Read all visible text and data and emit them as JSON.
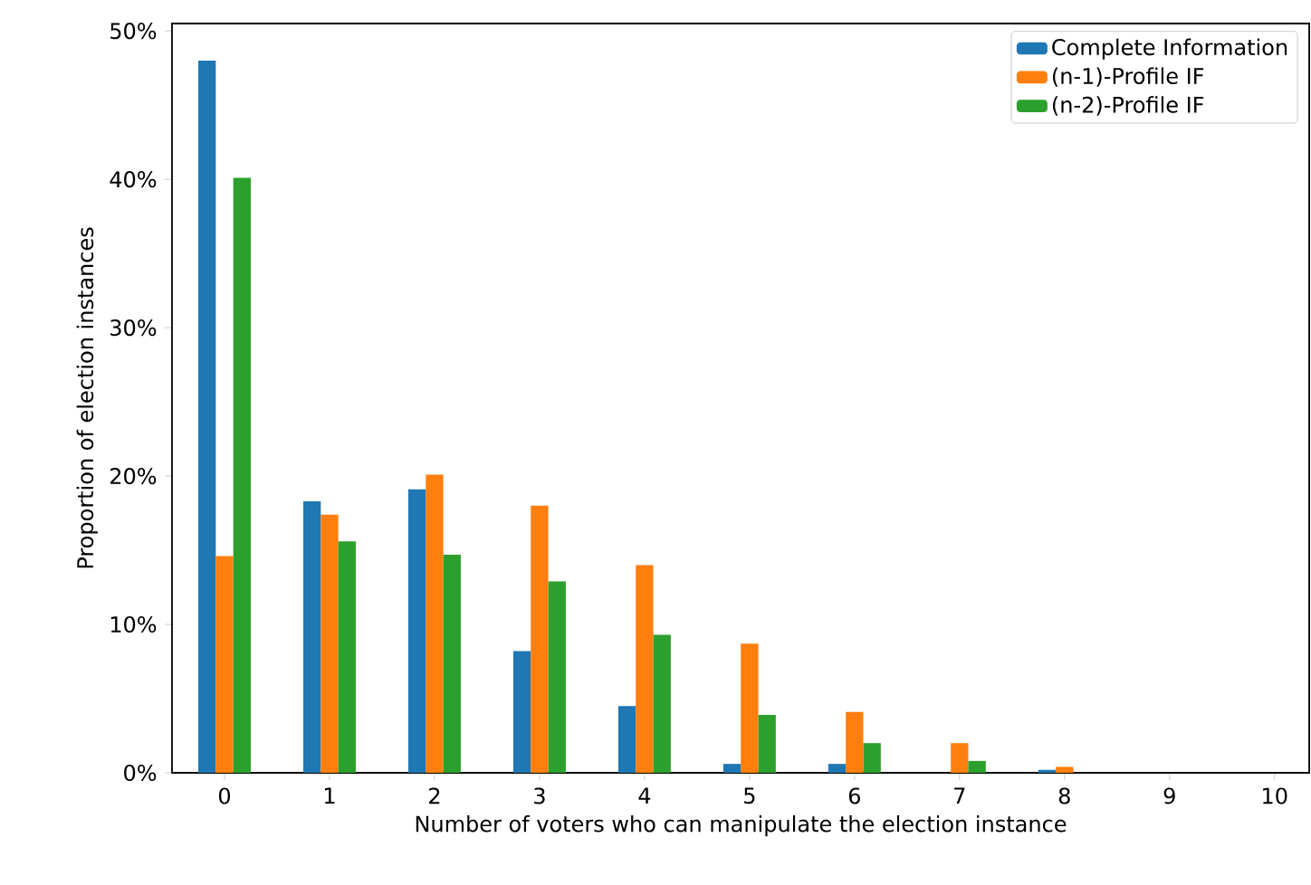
{
  "chart_data": {
    "type": "bar",
    "xlabel": "Number of voters who can manipulate the election instance",
    "ylabel": "Proportion of election instances",
    "categories": [
      "0",
      "1",
      "2",
      "3",
      "4",
      "5",
      "6",
      "7",
      "8",
      "9",
      "10"
    ],
    "series": [
      {
        "name": "Complete Information",
        "color": "#1f77b4",
        "values": [
          48.0,
          18.3,
          19.1,
          8.2,
          4.5,
          0.6,
          0.6,
          0,
          0.2,
          0,
          0
        ]
      },
      {
        "name": "(n-1)-Profile IF",
        "color": "#ff7f0e",
        "values": [
          14.6,
          17.4,
          20.1,
          18.0,
          14.0,
          8.7,
          4.1,
          2.0,
          0.4,
          0,
          0
        ]
      },
      {
        "name": "(n-2)-Profile IF",
        "color": "#2ca02c",
        "values": [
          40.1,
          15.6,
          14.7,
          12.9,
          9.3,
          3.9,
          2.0,
          0.8,
          0,
          0,
          0
        ]
      }
    ],
    "ylim": [
      0,
      50.5
    ],
    "yticks": [
      {
        "value": 0,
        "label": "0%"
      },
      {
        "value": 10,
        "label": "10%"
      },
      {
        "value": 20,
        "label": "20%"
      },
      {
        "value": 30,
        "label": "30%"
      },
      {
        "value": 40,
        "label": "40%"
      },
      {
        "value": 50,
        "label": "50%"
      }
    ],
    "legend": "top right",
    "grid": false
  }
}
